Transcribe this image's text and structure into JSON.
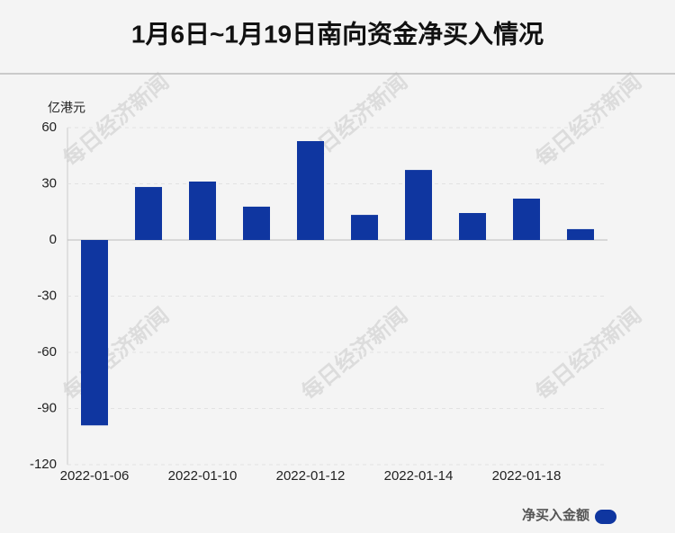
{
  "chart_data": {
    "type": "bar",
    "title": "1月6日~1月19日南向资金净买入情况",
    "y_unit": "亿港元",
    "watermark": "每日经济新闻",
    "categories": [
      "2022-01-06",
      null,
      "2022-01-10",
      null,
      "2022-01-12",
      null,
      "2022-01-14",
      null,
      "2022-01-18",
      null
    ],
    "series": [
      {
        "name": "净买入金额",
        "color": "#0f36a0",
        "values": [
          -99,
          28.3,
          31.2,
          17.8,
          52.8,
          13.4,
          37.4,
          14.4,
          22.1,
          5.8
        ]
      }
    ],
    "ylim": [
      -120,
      60
    ],
    "yticks": [
      -120,
      -90,
      -60,
      -30,
      0,
      30,
      60
    ],
    "grid": true
  }
}
